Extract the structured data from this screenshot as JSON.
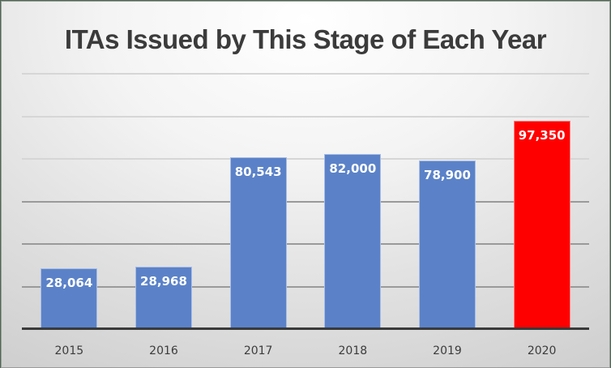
{
  "chart_data": {
    "type": "bar",
    "title": "ITAs Issued by This Stage of Each Year",
    "xlabel": "",
    "ylabel": "",
    "categories": [
      "2015",
      "2016",
      "2017",
      "2018",
      "2019",
      "2020"
    ],
    "values": [
      28064,
      28968,
      80543,
      82000,
      78900,
      97350
    ],
    "value_labels": [
      "28,064",
      "28,968",
      "80,543",
      "82,000",
      "78,900",
      "97,350"
    ],
    "bar_colors": [
      "#5b82c8",
      "#5b82c8",
      "#5b82c8",
      "#5b82c8",
      "#5b82c8",
      "#ff0000"
    ],
    "ylim": [
      0,
      120000
    ],
    "y_gridlines": [
      20000,
      40000,
      60000,
      80000,
      100000,
      120000
    ],
    "y_tick_labels_visible": false,
    "grid": true,
    "legend": "none",
    "data_labels": "inside-end, white bold"
  }
}
